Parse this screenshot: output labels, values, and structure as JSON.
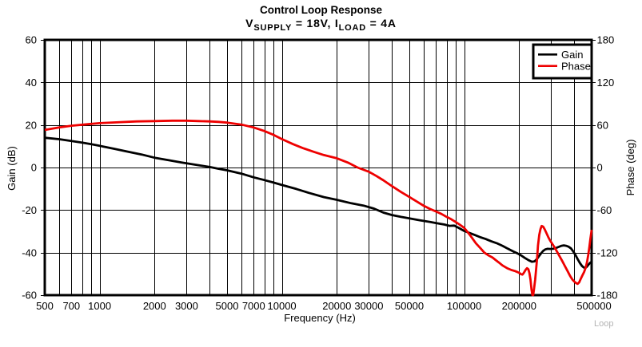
{
  "subtitle": {
    "parts": [
      {
        "text": "V",
        "sub": "SUPPLY"
      },
      {
        "text": " = 18V, I",
        "sub": "LOAD"
      },
      {
        "text": " = 4A",
        "sub": ""
      }
    ]
  },
  "watermark": "Loop",
  "chart_data": {
    "type": "line",
    "title": "Control Loop Response",
    "subtitle_text": "VSUPPLY = 18V, ILOAD = 4A",
    "grid": true,
    "x_axis": {
      "label": "Frequency (Hz)",
      "scale": "log",
      "lim": [
        500,
        500000
      ],
      "tick_labels": [
        500,
        700,
        1000,
        2000,
        3000,
        5000,
        7000,
        10000,
        20000,
        30000,
        50000,
        100000,
        200000,
        500000
      ]
    },
    "gain_axis": {
      "label": "Gain (dB)",
      "lim": [
        -60,
        60
      ],
      "ticks": [
        60,
        40,
        20,
        0,
        -20,
        -40,
        -60
      ]
    },
    "phase_axis": {
      "label": "Phase (deg)",
      "lim": [
        -180,
        180
      ],
      "ticks": [
        180,
        120,
        60,
        0,
        -60,
        -120,
        -180
      ]
    },
    "legend": {
      "position": "top-right",
      "items": [
        {
          "label": "Gain",
          "color": "#000000"
        },
        {
          "label": "Phase",
          "color": "#ee0000"
        }
      ]
    },
    "series": [
      {
        "name": "Gain",
        "axis": "gain",
        "color": "#000000",
        "points": [
          [
            500,
            14.0
          ],
          [
            600,
            13.3
          ],
          [
            700,
            12.5
          ],
          [
            800,
            11.7
          ],
          [
            900,
            11.0
          ],
          [
            1000,
            10.2
          ],
          [
            1200,
            8.8
          ],
          [
            1400,
            7.6
          ],
          [
            1700,
            6.1
          ],
          [
            2000,
            4.6
          ],
          [
            2400,
            3.4
          ],
          [
            2800,
            2.4
          ],
          [
            3200,
            1.6
          ],
          [
            3600,
            0.9
          ],
          [
            4000,
            0.25
          ],
          [
            4500,
            -0.6
          ],
          [
            5000,
            -1.3
          ],
          [
            6000,
            -2.9
          ],
          [
            7000,
            -4.6
          ],
          [
            8000,
            -5.9
          ],
          [
            9000,
            -7.1
          ],
          [
            10000,
            -8.2
          ],
          [
            12000,
            -10.1
          ],
          [
            14000,
            -11.9
          ],
          [
            17000,
            -13.9
          ],
          [
            20000,
            -15.2
          ],
          [
            24000,
            -16.8
          ],
          [
            28000,
            -17.9
          ],
          [
            32000,
            -19.3
          ],
          [
            36000,
            -21.2
          ],
          [
            40000,
            -22.3
          ],
          [
            45000,
            -23.2
          ],
          [
            50000,
            -23.9
          ],
          [
            57000,
            -24.8
          ],
          [
            65000,
            -25.6
          ],
          [
            70000,
            -26.1
          ],
          [
            78000,
            -26.8
          ],
          [
            83000,
            -27.4
          ],
          [
            88000,
            -27.3
          ],
          [
            93000,
            -28.3
          ],
          [
            100000,
            -29.8
          ],
          [
            108000,
            -30.9
          ],
          [
            115000,
            -31.8
          ],
          [
            123000,
            -32.8
          ],
          [
            131000,
            -33.6
          ],
          [
            140000,
            -34.6
          ],
          [
            151000,
            -35.6
          ],
          [
            162000,
            -36.8
          ],
          [
            174000,
            -38.2
          ],
          [
            186000,
            -39.5
          ],
          [
            196000,
            -40.4
          ],
          [
            205000,
            -41.3
          ],
          [
            215000,
            -42.5
          ],
          [
            226000,
            -43.6
          ],
          [
            235000,
            -44.3
          ],
          [
            243000,
            -44.1
          ],
          [
            250000,
            -43.1
          ],
          [
            257000,
            -41.7
          ],
          [
            264000,
            -40.3
          ],
          [
            271000,
            -39.2
          ],
          [
            278000,
            -38.5
          ],
          [
            287000,
            -38.2
          ],
          [
            297000,
            -38.3
          ],
          [
            307000,
            -38.2
          ],
          [
            317000,
            -37.9
          ],
          [
            330000,
            -37.3
          ],
          [
            342000,
            -36.8
          ],
          [
            352000,
            -36.6
          ],
          [
            362000,
            -36.8
          ],
          [
            373000,
            -37.2
          ],
          [
            385000,
            -38.0
          ],
          [
            396000,
            -39.4
          ],
          [
            408000,
            -41.2
          ],
          [
            420000,
            -43.2
          ],
          [
            432000,
            -45.0
          ],
          [
            443000,
            -46.3
          ],
          [
            453000,
            -47.0
          ],
          [
            462000,
            -47.2
          ],
          [
            471000,
            -46.6
          ],
          [
            480000,
            -45.7
          ],
          [
            490000,
            -44.8
          ],
          [
            500000,
            -44.3
          ]
        ]
      },
      {
        "name": "Phase",
        "axis": "phase",
        "color": "#ee0000",
        "points": [
          [
            500,
            53
          ],
          [
            600,
            56.5
          ],
          [
            700,
            59
          ],
          [
            850,
            61
          ],
          [
            1000,
            62.5
          ],
          [
            1300,
            64
          ],
          [
            1600,
            65
          ],
          [
            2000,
            65.5
          ],
          [
            2500,
            66
          ],
          [
            3000,
            66
          ],
          [
            3500,
            65.5
          ],
          [
            4000,
            65
          ],
          [
            4500,
            64.3
          ],
          [
            5000,
            63.3
          ],
          [
            6000,
            60.5
          ],
          [
            7000,
            56.5
          ],
          [
            8000,
            51.5
          ],
          [
            9000,
            46
          ],
          [
            10000,
            40
          ],
          [
            11500,
            33
          ],
          [
            13000,
            27.5
          ],
          [
            15000,
            22
          ],
          [
            17000,
            17.5
          ],
          [
            20000,
            13
          ],
          [
            23000,
            7
          ],
          [
            26000,
            0
          ],
          [
            30000,
            -6
          ],
          [
            33000,
            -12
          ],
          [
            36000,
            -18
          ],
          [
            40000,
            -26
          ],
          [
            45000,
            -34.5
          ],
          [
            50000,
            -41.5
          ],
          [
            55000,
            -48
          ],
          [
            60000,
            -54
          ],
          [
            65000,
            -58.5
          ],
          [
            70000,
            -62
          ],
          [
            75000,
            -65.5
          ],
          [
            80000,
            -69.5
          ],
          [
            85000,
            -73
          ],
          [
            90000,
            -77
          ],
          [
            95000,
            -81
          ],
          [
            100000,
            -85
          ],
          [
            108000,
            -96
          ],
          [
            116000,
            -107
          ],
          [
            123000,
            -114
          ],
          [
            129000,
            -120
          ],
          [
            136000,
            -124
          ],
          [
            143000,
            -127
          ],
          [
            148000,
            -130
          ],
          [
            155000,
            -134
          ],
          [
            162000,
            -138
          ],
          [
            172000,
            -142
          ],
          [
            181000,
            -144.5
          ],
          [
            190000,
            -146
          ],
          [
            196000,
            -147.5
          ],
          [
            200000,
            -148.5
          ],
          [
            205000,
            -150.5
          ],
          [
            209000,
            -151
          ],
          [
            213000,
            -148
          ],
          [
            217000,
            -144.5
          ],
          [
            221000,
            -142
          ],
          [
            225000,
            -143.5
          ],
          [
            228000,
            -149
          ],
          [
            231000,
            -158
          ],
          [
            234000,
            -172
          ],
          [
            236500,
            -180
          ],
          [
            239000,
            -180
          ],
          [
            242000,
            -170
          ],
          [
            245000,
            -158
          ],
          [
            248000,
            -143
          ],
          [
            251000,
            -128
          ],
          [
            254000,
            -110
          ],
          [
            258000,
            -95
          ],
          [
            262000,
            -87
          ],
          [
            266000,
            -82.5
          ],
          [
            271000,
            -83.5
          ],
          [
            276000,
            -87
          ],
          [
            282000,
            -92
          ],
          [
            289000,
            -98
          ],
          [
            296000,
            -103
          ],
          [
            303000,
            -107
          ],
          [
            312000,
            -112
          ],
          [
            322000,
            -118
          ],
          [
            333000,
            -125
          ],
          [
            345000,
            -132
          ],
          [
            357000,
            -139
          ],
          [
            369000,
            -146
          ],
          [
            381000,
            -153
          ],
          [
            392000,
            -158
          ],
          [
            402000,
            -161
          ],
          [
            411000,
            -163
          ],
          [
            419000,
            -164
          ],
          [
            427000,
            -162
          ],
          [
            436000,
            -157
          ],
          [
            445000,
            -152
          ],
          [
            455000,
            -147
          ],
          [
            464000,
            -141
          ],
          [
            472000,
            -133
          ],
          [
            479000,
            -123
          ],
          [
            486000,
            -112
          ],
          [
            492000,
            -101
          ],
          [
            497000,
            -93
          ],
          [
            500000,
            -88
          ]
        ]
      }
    ]
  }
}
